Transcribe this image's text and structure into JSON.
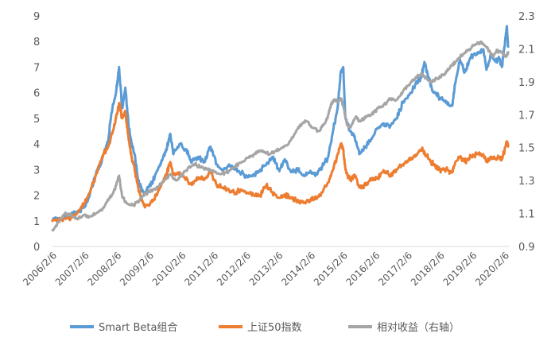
{
  "chart_data": {
    "type": "line",
    "title": "",
    "x_tick_labels": [
      "2006/2/6",
      "2007/2/6",
      "2008/2/6",
      "2009/2/6",
      "2010/2/6",
      "2011/2/6",
      "2012/2/6",
      "2013/2/6",
      "2014/2/6",
      "2015/2/6",
      "2016/2/6",
      "2017/2/6",
      "2018/2/6",
      "2019/2/6",
      "2020/2/6"
    ],
    "y_left": {
      "min": 0,
      "max": 9,
      "ticks": [
        "0",
        "1",
        "2",
        "3",
        "4",
        "5",
        "6",
        "7",
        "8",
        "9"
      ]
    },
    "y_right": {
      "min": 0.9,
      "max": 2.3,
      "ticks": [
        "0.9",
        "1.1",
        "1.3",
        "1.5",
        "1.7",
        "1.9",
        "2.1",
        "2.3"
      ]
    },
    "grid": false,
    "legend_position": "bottom",
    "series": [
      {
        "name": "Smart Beta组合",
        "axis": "left",
        "color": "#5B9BD5",
        "points": [
          [
            2006.1,
            1.0
          ],
          [
            2006.4,
            1.1
          ],
          [
            2006.7,
            1.25
          ],
          [
            2006.9,
            1.35
          ],
          [
            2007.1,
            1.5
          ],
          [
            2007.3,
            2.0
          ],
          [
            2007.5,
            2.8
          ],
          [
            2007.7,
            3.4
          ],
          [
            2007.9,
            4.1
          ],
          [
            2008.0,
            5.2
          ],
          [
            2008.15,
            6.0
          ],
          [
            2008.25,
            7.0
          ],
          [
            2008.35,
            5.4
          ],
          [
            2008.45,
            6.2
          ],
          [
            2008.55,
            4.8
          ],
          [
            2008.65,
            4.0
          ],
          [
            2008.75,
            3.6
          ],
          [
            2008.85,
            2.7
          ],
          [
            2008.95,
            2.3
          ],
          [
            2009.05,
            2.1
          ],
          [
            2009.2,
            2.3
          ],
          [
            2009.35,
            2.6
          ],
          [
            2009.5,
            3.0
          ],
          [
            2009.65,
            3.4
          ],
          [
            2009.8,
            3.9
          ],
          [
            2009.9,
            4.4
          ],
          [
            2010.0,
            3.6
          ],
          [
            2010.2,
            4.0
          ],
          [
            2010.4,
            3.8
          ],
          [
            2010.6,
            3.3
          ],
          [
            2010.8,
            3.5
          ],
          [
            2011.0,
            3.3
          ],
          [
            2011.2,
            3.9
          ],
          [
            2011.4,
            3.2
          ],
          [
            2011.6,
            3.0
          ],
          [
            2011.8,
            3.2
          ],
          [
            2012.0,
            3.0
          ],
          [
            2012.2,
            2.9
          ],
          [
            2012.4,
            2.7
          ],
          [
            2012.6,
            2.8
          ],
          [
            2012.8,
            3.0
          ],
          [
            2013.0,
            3.2
          ],
          [
            2013.2,
            3.5
          ],
          [
            2013.4,
            3.0
          ],
          [
            2013.6,
            3.4
          ],
          [
            2013.8,
            2.9
          ],
          [
            2014.0,
            3.0
          ],
          [
            2014.2,
            2.8
          ],
          [
            2014.4,
            2.9
          ],
          [
            2014.6,
            2.8
          ],
          [
            2014.8,
            3.1
          ],
          [
            2015.0,
            3.5
          ],
          [
            2015.15,
            4.5
          ],
          [
            2015.3,
            5.4
          ],
          [
            2015.4,
            6.8
          ],
          [
            2015.48,
            7.0
          ],
          [
            2015.55,
            5.0
          ],
          [
            2015.7,
            4.5
          ],
          [
            2015.85,
            4.3
          ],
          [
            2016.0,
            3.6
          ],
          [
            2016.2,
            3.9
          ],
          [
            2016.4,
            4.2
          ],
          [
            2016.6,
            4.6
          ],
          [
            2016.8,
            4.8
          ],
          [
            2017.0,
            4.7
          ],
          [
            2017.2,
            5.0
          ],
          [
            2017.4,
            5.6
          ],
          [
            2017.6,
            5.9
          ],
          [
            2017.8,
            6.3
          ],
          [
            2018.0,
            6.6
          ],
          [
            2018.1,
            7.2
          ],
          [
            2018.25,
            6.5
          ],
          [
            2018.4,
            6.0
          ],
          [
            2018.6,
            5.8
          ],
          [
            2018.8,
            5.6
          ],
          [
            2019.0,
            5.5
          ],
          [
            2019.1,
            6.4
          ],
          [
            2019.25,
            7.3
          ],
          [
            2019.4,
            6.8
          ],
          [
            2019.6,
            7.4
          ],
          [
            2019.8,
            7.5
          ],
          [
            2020.0,
            7.7
          ],
          [
            2020.1,
            6.9
          ],
          [
            2020.25,
            7.5
          ],
          [
            2020.4,
            7.2
          ],
          [
            2020.5,
            7.4
          ],
          [
            2020.6,
            7.0
          ],
          [
            2020.72,
            8.2
          ],
          [
            2020.76,
            8.6
          ],
          [
            2020.8,
            7.8
          ]
        ]
      },
      {
        "name": "上证50指数",
        "axis": "left",
        "color": "#ED7D31",
        "points": [
          [
            2006.1,
            1.0
          ],
          [
            2006.4,
            1.05
          ],
          [
            2006.7,
            1.15
          ],
          [
            2006.9,
            1.3
          ],
          [
            2007.1,
            1.6
          ],
          [
            2007.3,
            2.1
          ],
          [
            2007.5,
            2.8
          ],
          [
            2007.7,
            3.5
          ],
          [
            2007.9,
            3.9
          ],
          [
            2008.05,
            4.5
          ],
          [
            2008.15,
            5.0
          ],
          [
            2008.25,
            5.6
          ],
          [
            2008.35,
            5.0
          ],
          [
            2008.45,
            5.2
          ],
          [
            2008.55,
            4.3
          ],
          [
            2008.65,
            3.5
          ],
          [
            2008.75,
            3.0
          ],
          [
            2008.85,
            2.4
          ],
          [
            2008.95,
            1.9
          ],
          [
            2009.05,
            1.6
          ],
          [
            2009.2,
            1.6
          ],
          [
            2009.35,
            1.8
          ],
          [
            2009.5,
            2.1
          ],
          [
            2009.65,
            2.5
          ],
          [
            2009.8,
            2.9
          ],
          [
            2009.9,
            3.3
          ],
          [
            2010.0,
            2.8
          ],
          [
            2010.2,
            2.9
          ],
          [
            2010.4,
            2.6
          ],
          [
            2010.6,
            2.4
          ],
          [
            2010.8,
            2.7
          ],
          [
            2011.0,
            2.6
          ],
          [
            2011.2,
            2.9
          ],
          [
            2011.4,
            2.4
          ],
          [
            2011.6,
            2.3
          ],
          [
            2011.8,
            2.2
          ],
          [
            2012.0,
            2.1
          ],
          [
            2012.2,
            2.2
          ],
          [
            2012.4,
            2.1
          ],
          [
            2012.6,
            2.0
          ],
          [
            2012.8,
            2.0
          ],
          [
            2013.0,
            2.4
          ],
          [
            2013.2,
            2.1
          ],
          [
            2013.4,
            1.9
          ],
          [
            2013.6,
            2.0
          ],
          [
            2013.8,
            1.9
          ],
          [
            2014.0,
            1.8
          ],
          [
            2014.2,
            1.7
          ],
          [
            2014.4,
            1.8
          ],
          [
            2014.6,
            1.9
          ],
          [
            2014.8,
            2.1
          ],
          [
            2015.0,
            2.5
          ],
          [
            2015.15,
            3.0
          ],
          [
            2015.3,
            3.6
          ],
          [
            2015.4,
            4.0
          ],
          [
            2015.48,
            3.8
          ],
          [
            2015.55,
            3.0
          ],
          [
            2015.7,
            2.6
          ],
          [
            2015.85,
            2.8
          ],
          [
            2016.0,
            2.3
          ],
          [
            2016.2,
            2.4
          ],
          [
            2016.4,
            2.6
          ],
          [
            2016.6,
            2.7
          ],
          [
            2016.8,
            2.9
          ],
          [
            2017.0,
            2.8
          ],
          [
            2017.2,
            3.0
          ],
          [
            2017.4,
            3.2
          ],
          [
            2017.6,
            3.4
          ],
          [
            2017.8,
            3.5
          ],
          [
            2018.0,
            3.8
          ],
          [
            2018.1,
            3.7
          ],
          [
            2018.25,
            3.4
          ],
          [
            2018.4,
            3.2
          ],
          [
            2018.6,
            3.0
          ],
          [
            2018.8,
            3.0
          ],
          [
            2019.0,
            2.9
          ],
          [
            2019.1,
            3.3
          ],
          [
            2019.25,
            3.5
          ],
          [
            2019.4,
            3.3
          ],
          [
            2019.6,
            3.5
          ],
          [
            2019.8,
            3.6
          ],
          [
            2020.0,
            3.6
          ],
          [
            2020.1,
            3.3
          ],
          [
            2020.25,
            3.5
          ],
          [
            2020.4,
            3.4
          ],
          [
            2020.5,
            3.5
          ],
          [
            2020.6,
            3.4
          ],
          [
            2020.72,
            3.9
          ],
          [
            2020.76,
            4.1
          ],
          [
            2020.8,
            3.9
          ]
        ]
      },
      {
        "name": "相对收益（右轴）",
        "axis": "right",
        "color": "#A5A5A5",
        "points": [
          [
            2006.1,
            1.0
          ],
          [
            2006.3,
            1.05
          ],
          [
            2006.5,
            1.1
          ],
          [
            2006.7,
            1.09
          ],
          [
            2006.9,
            1.07
          ],
          [
            2007.1,
            1.09
          ],
          [
            2007.3,
            1.08
          ],
          [
            2007.5,
            1.1
          ],
          [
            2007.7,
            1.12
          ],
          [
            2007.9,
            1.18
          ],
          [
            2008.05,
            1.22
          ],
          [
            2008.15,
            1.27
          ],
          [
            2008.25,
            1.33
          ],
          [
            2008.35,
            1.2
          ],
          [
            2008.5,
            1.16
          ],
          [
            2008.7,
            1.15
          ],
          [
            2008.9,
            1.18
          ],
          [
            2009.1,
            1.22
          ],
          [
            2009.3,
            1.24
          ],
          [
            2009.5,
            1.26
          ],
          [
            2009.7,
            1.3
          ],
          [
            2009.9,
            1.34
          ],
          [
            2010.1,
            1.3
          ],
          [
            2010.3,
            1.34
          ],
          [
            2010.5,
            1.38
          ],
          [
            2010.7,
            1.4
          ],
          [
            2010.9,
            1.38
          ],
          [
            2011.1,
            1.37
          ],
          [
            2011.3,
            1.36
          ],
          [
            2011.5,
            1.34
          ],
          [
            2011.7,
            1.35
          ],
          [
            2011.9,
            1.37
          ],
          [
            2012.1,
            1.4
          ],
          [
            2012.3,
            1.42
          ],
          [
            2012.5,
            1.45
          ],
          [
            2012.7,
            1.47
          ],
          [
            2012.9,
            1.48
          ],
          [
            2013.1,
            1.46
          ],
          [
            2013.3,
            1.48
          ],
          [
            2013.5,
            1.5
          ],
          [
            2013.7,
            1.52
          ],
          [
            2013.9,
            1.58
          ],
          [
            2014.1,
            1.64
          ],
          [
            2014.3,
            1.66
          ],
          [
            2014.5,
            1.62
          ],
          [
            2014.7,
            1.6
          ],
          [
            2014.9,
            1.65
          ],
          [
            2015.0,
            1.7
          ],
          [
            2015.1,
            1.77
          ],
          [
            2015.2,
            1.79
          ],
          [
            2015.3,
            1.78
          ],
          [
            2015.4,
            1.8
          ],
          [
            2015.5,
            1.74
          ],
          [
            2015.6,
            1.64
          ],
          [
            2015.7,
            1.62
          ],
          [
            2015.8,
            1.66
          ],
          [
            2015.9,
            1.69
          ],
          [
            2016.0,
            1.66
          ],
          [
            2016.2,
            1.68
          ],
          [
            2016.4,
            1.7
          ],
          [
            2016.6,
            1.74
          ],
          [
            2016.8,
            1.76
          ],
          [
            2017.0,
            1.8
          ],
          [
            2017.2,
            1.79
          ],
          [
            2017.4,
            1.84
          ],
          [
            2017.6,
            1.88
          ],
          [
            2017.8,
            1.92
          ],
          [
            2018.0,
            1.95
          ],
          [
            2018.1,
            1.93
          ],
          [
            2018.3,
            1.9
          ],
          [
            2018.5,
            1.92
          ],
          [
            2018.7,
            1.94
          ],
          [
            2018.9,
            1.98
          ],
          [
            2019.1,
            2.02
          ],
          [
            2019.3,
            2.06
          ],
          [
            2019.5,
            2.09
          ],
          [
            2019.7,
            2.12
          ],
          [
            2019.9,
            2.14
          ],
          [
            2020.0,
            2.13
          ],
          [
            2020.15,
            2.1
          ],
          [
            2020.3,
            2.05
          ],
          [
            2020.45,
            2.09
          ],
          [
            2020.6,
            2.08
          ],
          [
            2020.72,
            2.05
          ],
          [
            2020.8,
            2.08
          ]
        ]
      }
    ]
  }
}
